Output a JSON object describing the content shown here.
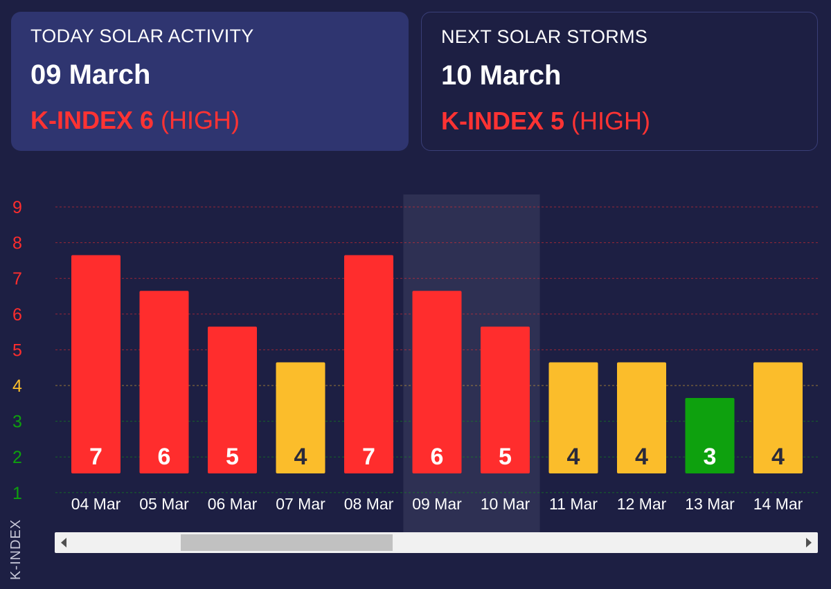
{
  "today": {
    "heading": "TODAY SOLAR ACTIVITY",
    "date": "09 March",
    "k_text": "K-INDEX 6",
    "level": "(HIGH)"
  },
  "next": {
    "heading": "NEXT SOLAR STORMS",
    "date": "10 March",
    "k_text": "K-INDEX 5",
    "level": "(HIGH)"
  },
  "colors": {
    "high": "#ff2d2d",
    "medium": "#fbbd2b",
    "low": "#0ea10e",
    "background": "#1d1f43",
    "card_active": "#2f3570",
    "highlight": "#2e3053"
  },
  "chart_data": {
    "type": "bar",
    "ylabel": "K-INDEX",
    "ylim": [
      1,
      9
    ],
    "yticks": [
      "1",
      "2",
      "3",
      "4",
      "5",
      "6",
      "7",
      "8",
      "9"
    ],
    "categories": [
      "04 Mar",
      "05 Mar",
      "06 Mar",
      "07 Mar",
      "08 Mar",
      "09 Mar",
      "10 Mar",
      "11 Mar",
      "12 Mar",
      "13 Mar",
      "14 Mar"
    ],
    "values": [
      7,
      6,
      5,
      4,
      7,
      6,
      5,
      4,
      4,
      3,
      4
    ],
    "highlighted_category": "09 Mar",
    "grid": "dashed horizontal",
    "color_rule": "k<=3 green, k=4 yellow, k>=5 red"
  },
  "scrollbar": {
    "position_fraction": 0.15,
    "visible_fraction": 0.29
  }
}
